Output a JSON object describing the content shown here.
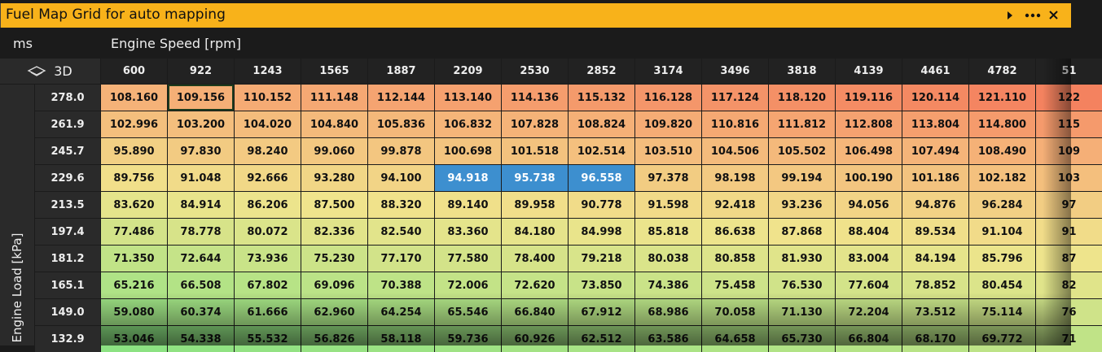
{
  "header": {
    "title": "Fuel Map Grid for auto mapping"
  },
  "units": "ms",
  "x_axis_label": "Engine Speed [rpm]",
  "y_axis_label": "Engine Load [kPa]",
  "view_button": "3D",
  "columns": [
    "600",
    "922",
    "1243",
    "1565",
    "1887",
    "2209",
    "2530",
    "2852",
    "3174",
    "3496",
    "3818",
    "4139",
    "4461",
    "4782",
    "51"
  ],
  "rows": [
    {
      "label": "278.0",
      "cells": [
        "108.160",
        "109.156",
        "110.152",
        "111.148",
        "112.144",
        "113.140",
        "114.136",
        "115.132",
        "116.128",
        "117.124",
        "118.120",
        "119.116",
        "120.114",
        "121.110",
        "122"
      ]
    },
    {
      "label": "261.9",
      "cells": [
        "102.996",
        "103.200",
        "104.020",
        "104.840",
        "105.836",
        "106.832",
        "107.828",
        "108.824",
        "109.820",
        "110.816",
        "111.812",
        "112.808",
        "113.804",
        "114.800",
        "115"
      ]
    },
    {
      "label": "245.7",
      "cells": [
        "95.890",
        "97.830",
        "98.240",
        "99.060",
        "99.878",
        "100.698",
        "101.518",
        "102.514",
        "103.510",
        "104.506",
        "105.502",
        "106.498",
        "107.494",
        "108.490",
        "109"
      ]
    },
    {
      "label": "229.6",
      "cells": [
        "89.756",
        "91.048",
        "92.666",
        "93.280",
        "94.100",
        "94.918",
        "95.738",
        "96.558",
        "97.378",
        "98.198",
        "99.194",
        "100.190",
        "101.186",
        "102.182",
        "103"
      ]
    },
    {
      "label": "213.5",
      "cells": [
        "83.620",
        "84.914",
        "86.206",
        "87.500",
        "88.320",
        "89.140",
        "89.958",
        "90.778",
        "91.598",
        "92.418",
        "93.236",
        "94.056",
        "94.876",
        "96.284",
        "97"
      ]
    },
    {
      "label": "197.4",
      "cells": [
        "77.486",
        "78.778",
        "80.072",
        "82.336",
        "82.540",
        "83.360",
        "84.180",
        "84.998",
        "85.818",
        "86.638",
        "87.868",
        "88.404",
        "89.534",
        "91.104",
        "91"
      ]
    },
    {
      "label": "181.2",
      "cells": [
        "71.350",
        "72.644",
        "73.936",
        "75.230",
        "77.170",
        "77.580",
        "78.400",
        "79.218",
        "80.038",
        "80.858",
        "81.930",
        "83.004",
        "84.194",
        "85.796",
        "87"
      ]
    },
    {
      "label": "165.1",
      "cells": [
        "65.216",
        "66.508",
        "67.802",
        "69.096",
        "70.388",
        "72.006",
        "72.620",
        "73.850",
        "74.386",
        "75.458",
        "76.530",
        "77.604",
        "78.852",
        "80.454",
        "82"
      ]
    },
    {
      "label": "149.0",
      "cells": [
        "59.080",
        "60.374",
        "61.666",
        "62.960",
        "64.254",
        "65.546",
        "66.840",
        "67.912",
        "68.986",
        "70.058",
        "71.130",
        "72.204",
        "73.512",
        "75.114",
        "76"
      ]
    },
    {
      "label": "132.9",
      "cells": [
        "53.046",
        "54.338",
        "55.532",
        "56.826",
        "58.118",
        "59.736",
        "60.926",
        "62.512",
        "63.586",
        "64.658",
        "65.730",
        "66.804",
        "68.170",
        "69.772",
        "71"
      ]
    }
  ],
  "selected_cell": [
    0,
    1
  ],
  "highlighted_cells": [
    [
      3,
      5
    ],
    [
      3,
      6
    ],
    [
      3,
      7
    ]
  ],
  "highlight_color": "#3d8fcf"
}
